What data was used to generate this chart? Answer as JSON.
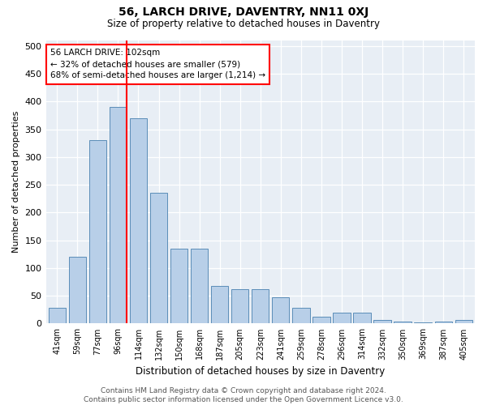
{
  "title": "56, LARCH DRIVE, DAVENTRY, NN11 0XJ",
  "subtitle": "Size of property relative to detached houses in Daventry",
  "xlabel": "Distribution of detached houses by size in Daventry",
  "ylabel": "Number of detached properties",
  "categories": [
    "41sqm",
    "59sqm",
    "77sqm",
    "96sqm",
    "114sqm",
    "132sqm",
    "150sqm",
    "168sqm",
    "187sqm",
    "205sqm",
    "223sqm",
    "241sqm",
    "259sqm",
    "278sqm",
    "296sqm",
    "314sqm",
    "332sqm",
    "350sqm",
    "369sqm",
    "387sqm",
    "405sqm"
  ],
  "values": [
    28,
    120,
    330,
    390,
    370,
    235,
    135,
    135,
    68,
    62,
    62,
    48,
    28,
    12,
    20,
    20,
    6,
    4,
    2,
    4,
    6
  ],
  "bar_color": "#b8cfe8",
  "bar_edge_color": "#5b8db8",
  "vline_color": "red",
  "vline_index": 3,
  "annotation_text": "56 LARCH DRIVE: 102sqm\n← 32% of detached houses are smaller (579)\n68% of semi-detached houses are larger (1,214) →",
  "annotation_box_color": "white",
  "annotation_box_edge": "red",
  "ylim": [
    0,
    510
  ],
  "yticks": [
    0,
    50,
    100,
    150,
    200,
    250,
    300,
    350,
    400,
    450,
    500
  ],
  "bg_color": "#e8eef5",
  "footer_line1": "Contains HM Land Registry data © Crown copyright and database right 2024.",
  "footer_line2": "Contains public sector information licensed under the Open Government Licence v3.0."
}
